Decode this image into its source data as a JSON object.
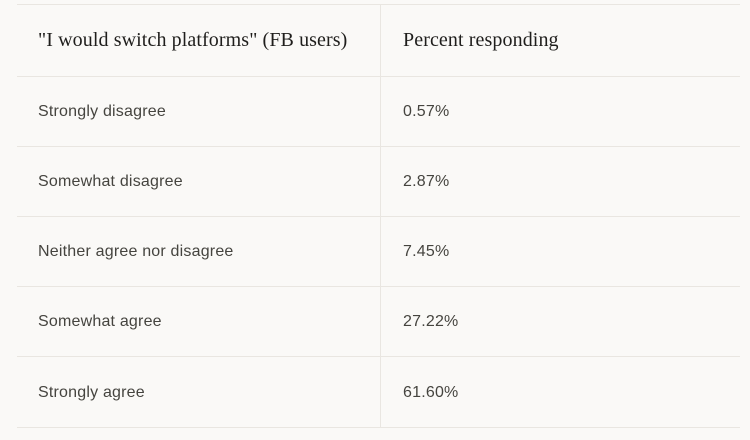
{
  "colors": {
    "background": "#faf9f7",
    "divider": "#e9e6e1",
    "header_text": "#1f1e1c",
    "body_text": "#45443f"
  },
  "table": {
    "columns": [
      {
        "label": "\"I would switch platforms\" (FB users)"
      },
      {
        "label": "Percent responding"
      }
    ],
    "rows": [
      {
        "label": "Strongly disagree",
        "value": "0.57%"
      },
      {
        "label": "Somewhat disagree",
        "value": "2.87%"
      },
      {
        "label": "Neither agree nor disagree",
        "value": "7.45%"
      },
      {
        "label": "Somewhat agree",
        "value": "27.22%"
      },
      {
        "label": "Strongly agree",
        "value": "61.60%"
      }
    ]
  },
  "chart_data": {
    "type": "table",
    "title": "\"I would switch platforms\" (FB users)",
    "columns": [
      "\"I would switch platforms\" (FB users)",
      "Percent responding"
    ],
    "categories": [
      "Strongly disagree",
      "Somewhat disagree",
      "Neither agree nor disagree",
      "Somewhat agree",
      "Strongly agree"
    ],
    "values": [
      0.57,
      2.87,
      7.45,
      27.22,
      61.6
    ],
    "value_unit": "%"
  }
}
